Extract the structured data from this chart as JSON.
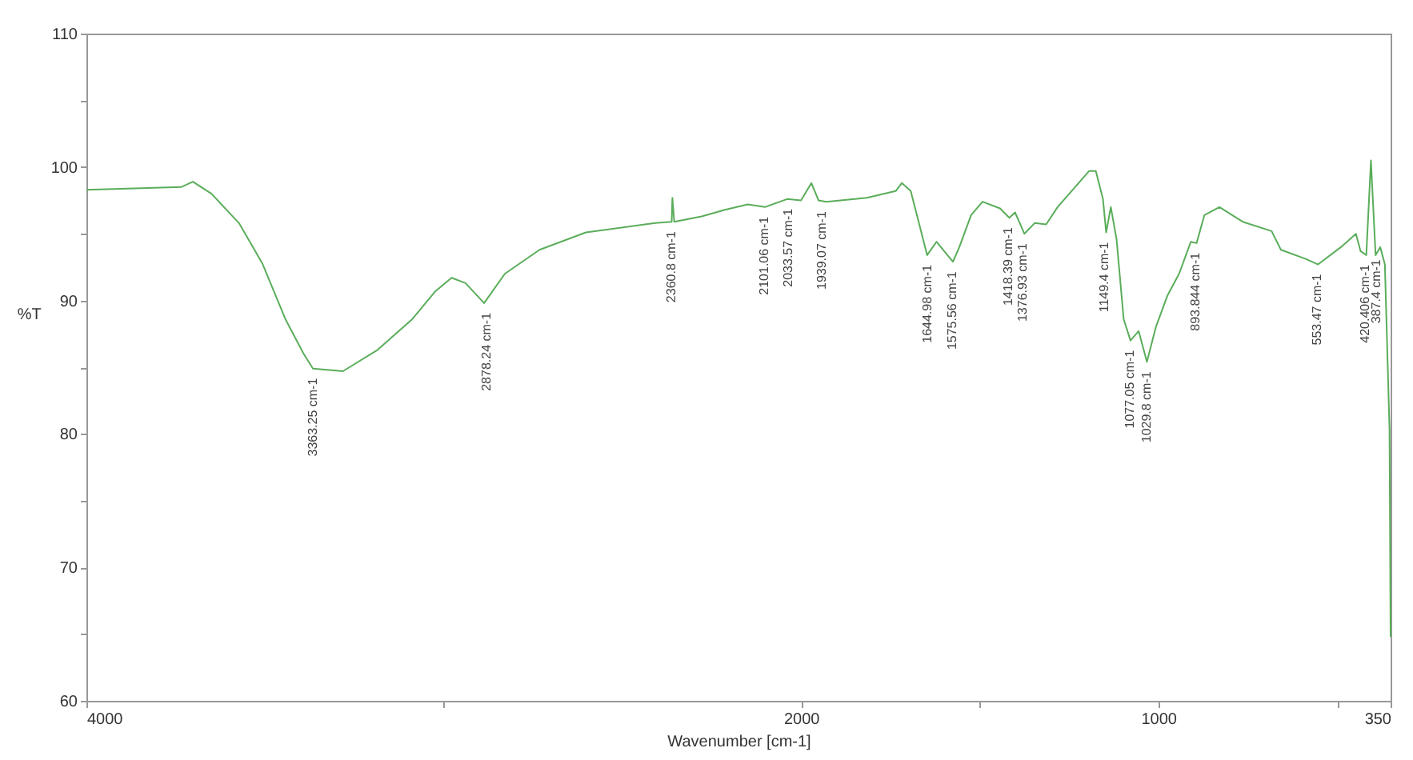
{
  "chart_data": {
    "type": "line",
    "xlabel": "Wavenumber [cm-1]",
    "ylabel": "%T",
    "xlim": [
      4000,
      350
    ],
    "ylim": [
      60,
      110
    ],
    "xticks": [
      4000,
      {
        "value": 3000,
        "label": null
      },
      2000,
      {
        "value": 1500,
        "label": null
      },
      1000,
      {
        "value": 500,
        "label": null
      },
      350
    ],
    "yticks": [
      60,
      {
        "value": 65,
        "label": null
      },
      70,
      {
        "value": 75,
        "label": null
      },
      80,
      {
        "value": 85,
        "label": null
      },
      90,
      {
        "value": 95,
        "label": null
      },
      100,
      {
        "value": 105,
        "label": null
      },
      110
    ],
    "grid": false,
    "marker": "none",
    "line_style": "solid",
    "series": [
      {
        "color": "#5aad5a",
        "x": [
          4000,
          3735,
          3702,
          3650,
          3573,
          3508,
          3443,
          3392,
          3366,
          3282,
          3185,
          3088,
          3023,
          2978,
          2939,
          2887,
          2829,
          2732,
          2602,
          2408,
          2362,
          2360,
          2355,
          2278,
          2213,
          2149,
          2101,
          2039,
          2000,
          1971,
          1951,
          1929,
          1816,
          1735,
          1718,
          1693,
          1670,
          1647,
          1621,
          1575,
          1557,
          1524,
          1492,
          1443,
          1417,
          1401,
          1375,
          1346,
          1314,
          1282,
          1233,
          1194,
          1175,
          1155,
          1146,
          1133,
          1117,
          1097,
          1078,
          1055,
          1032,
          1007,
          974,
          942,
          909,
          893,
          871,
          829,
          764,
          683,
          657,
          586,
          553,
          489,
          447,
          434,
          418,
          405,
          392,
          379,
          366,
          353,
          350
        ],
        "values": [
          98.3,
          98.5,
          98.9,
          98,
          95.8,
          92.8,
          88.6,
          86,
          84.9,
          84.7,
          86.3,
          88.6,
          90.7,
          91.7,
          91.3,
          89.8,
          92,
          93.8,
          95.1,
          95.8,
          95.9,
          97.7,
          95.9,
          96.3,
          96.8,
          97.2,
          97,
          97.6,
          97.5,
          98.8,
          97.5,
          97.4,
          97.7,
          98.2,
          98.8,
          98.2,
          95.8,
          93.4,
          94.4,
          92.9,
          94,
          96.4,
          97.4,
          96.9,
          96.2,
          96.6,
          95,
          95.8,
          95.7,
          97,
          98.5,
          99.7,
          99.7,
          97.6,
          95.1,
          97,
          94.6,
          88.6,
          87,
          87.7,
          85.4,
          88,
          90.4,
          92,
          94.4,
          94.3,
          96.4,
          97,
          95.9,
          95.2,
          93.8,
          93.1,
          92.7,
          94,
          95,
          93.7,
          93.4,
          100.5,
          93.4,
          94,
          92.7,
          80.3,
          64.8
        ]
      }
    ],
    "annotations": [
      {
        "text": "3363.25 cm-1",
        "x": 3363.25,
        "y": 84.9
      },
      {
        "text": "2878.24 cm-1",
        "x": 2878.24,
        "y": 89.8
      },
      {
        "text": "2360.8 cm-1",
        "x": 2360.8,
        "y": 95.9
      },
      {
        "text": "2101.06 cm-1",
        "x": 2101.06,
        "y": 97
      },
      {
        "text": "2033.57 cm-1",
        "x": 2033.57,
        "y": 97.6
      },
      {
        "text": "1939.07 cm-1",
        "x": 1939.07,
        "y": 97.4
      },
      {
        "text": "1644.98 cm-1",
        "x": 1644.98,
        "y": 93.4
      },
      {
        "text": "1575.56 cm-1",
        "x": 1575.56,
        "y": 92.9
      },
      {
        "text": "1418.39 cm-1",
        "x": 1418.39,
        "y": 96.2
      },
      {
        "text": "1376.93 cm-1",
        "x": 1376.93,
        "y": 95
      },
      {
        "text": "1149.4 cm-1",
        "x": 1149.4,
        "y": 95.1
      },
      {
        "text": "1077.05 cm-1",
        "x": 1077.05,
        "y": 87
      },
      {
        "text": "1029.8 cm-1",
        "x": 1029.8,
        "y": 85.4
      },
      {
        "text": "893.844 cm-1",
        "x": 893.844,
        "y": 94.3
      },
      {
        "text": "553.47 cm-1",
        "x": 553.47,
        "y": 92.7
      },
      {
        "text": "420.406 cm-1",
        "x": 420.406,
        "y": 93.4
      },
      {
        "text": "387.4 cm-1",
        "x": 387.4,
        "y": 93.8
      }
    ]
  }
}
